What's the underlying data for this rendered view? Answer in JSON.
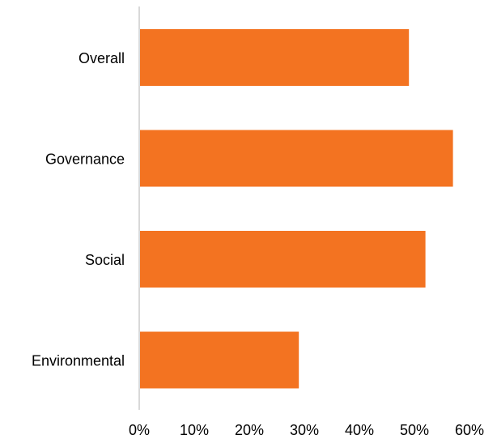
{
  "colors": {
    "bar": "#F37321",
    "axis": "#D9D9D9",
    "text": "#000000"
  },
  "chart_data": {
    "type": "bar",
    "orientation": "horizontal",
    "categories": [
      "Overall",
      "Governance",
      "Social",
      "Environmental"
    ],
    "values": [
      49,
      57,
      52,
      29
    ],
    "value_unit": "%",
    "xlim": [
      0,
      60
    ],
    "xticks": [
      "0%",
      "10%",
      "20%",
      "30%",
      "40%",
      "50%",
      "60%"
    ],
    "title": "",
    "xlabel": "",
    "ylabel": "",
    "grid": false,
    "legend": "none"
  }
}
